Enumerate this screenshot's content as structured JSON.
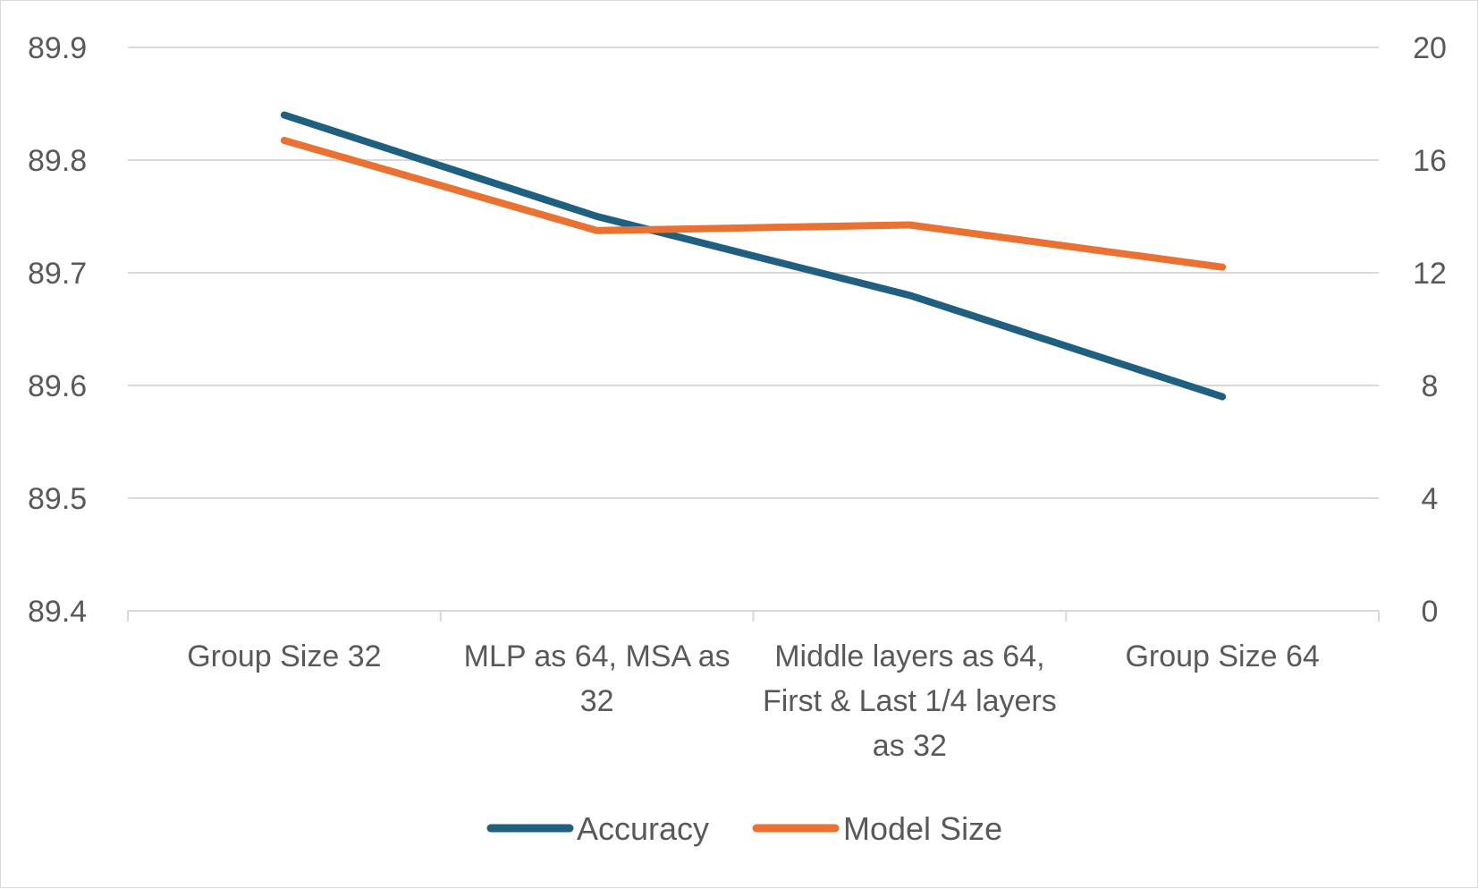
{
  "chart_data": {
    "type": "line",
    "categories": [
      "Group Size 32",
      "MLP as 64, MSA as 32",
      "Middle layers as 64, First & Last 1/4 layers as 32",
      "Group Size 64"
    ],
    "category_lines": [
      [
        "Group Size 32"
      ],
      [
        "MLP as 64, MSA as",
        "32"
      ],
      [
        "Middle layers as 64,",
        "First & Last 1/4 layers",
        "as 32"
      ],
      [
        "Group Size 64"
      ]
    ],
    "series": [
      {
        "name": "Accuracy",
        "axis": "left",
        "color": "#1f5f7f",
        "values": [
          89.84,
          89.75,
          89.68,
          89.59
        ]
      },
      {
        "name": "Model Size",
        "axis": "right",
        "color": "#e97132",
        "values": [
          16.7,
          13.5,
          13.7,
          12.2
        ]
      }
    ],
    "y_left": {
      "ylim": [
        89.4,
        89.9
      ],
      "ticks": [
        "89.9",
        "89.8",
        "89.7",
        "89.6",
        "89.5",
        "89.4"
      ]
    },
    "y_right": {
      "ylim": [
        0,
        20
      ],
      "ticks": [
        "20",
        "16",
        "12",
        "8",
        "4",
        "0"
      ]
    },
    "grid": true,
    "legend_position": "bottom",
    "title": "",
    "xlabel": "",
    "ylabel": ""
  }
}
